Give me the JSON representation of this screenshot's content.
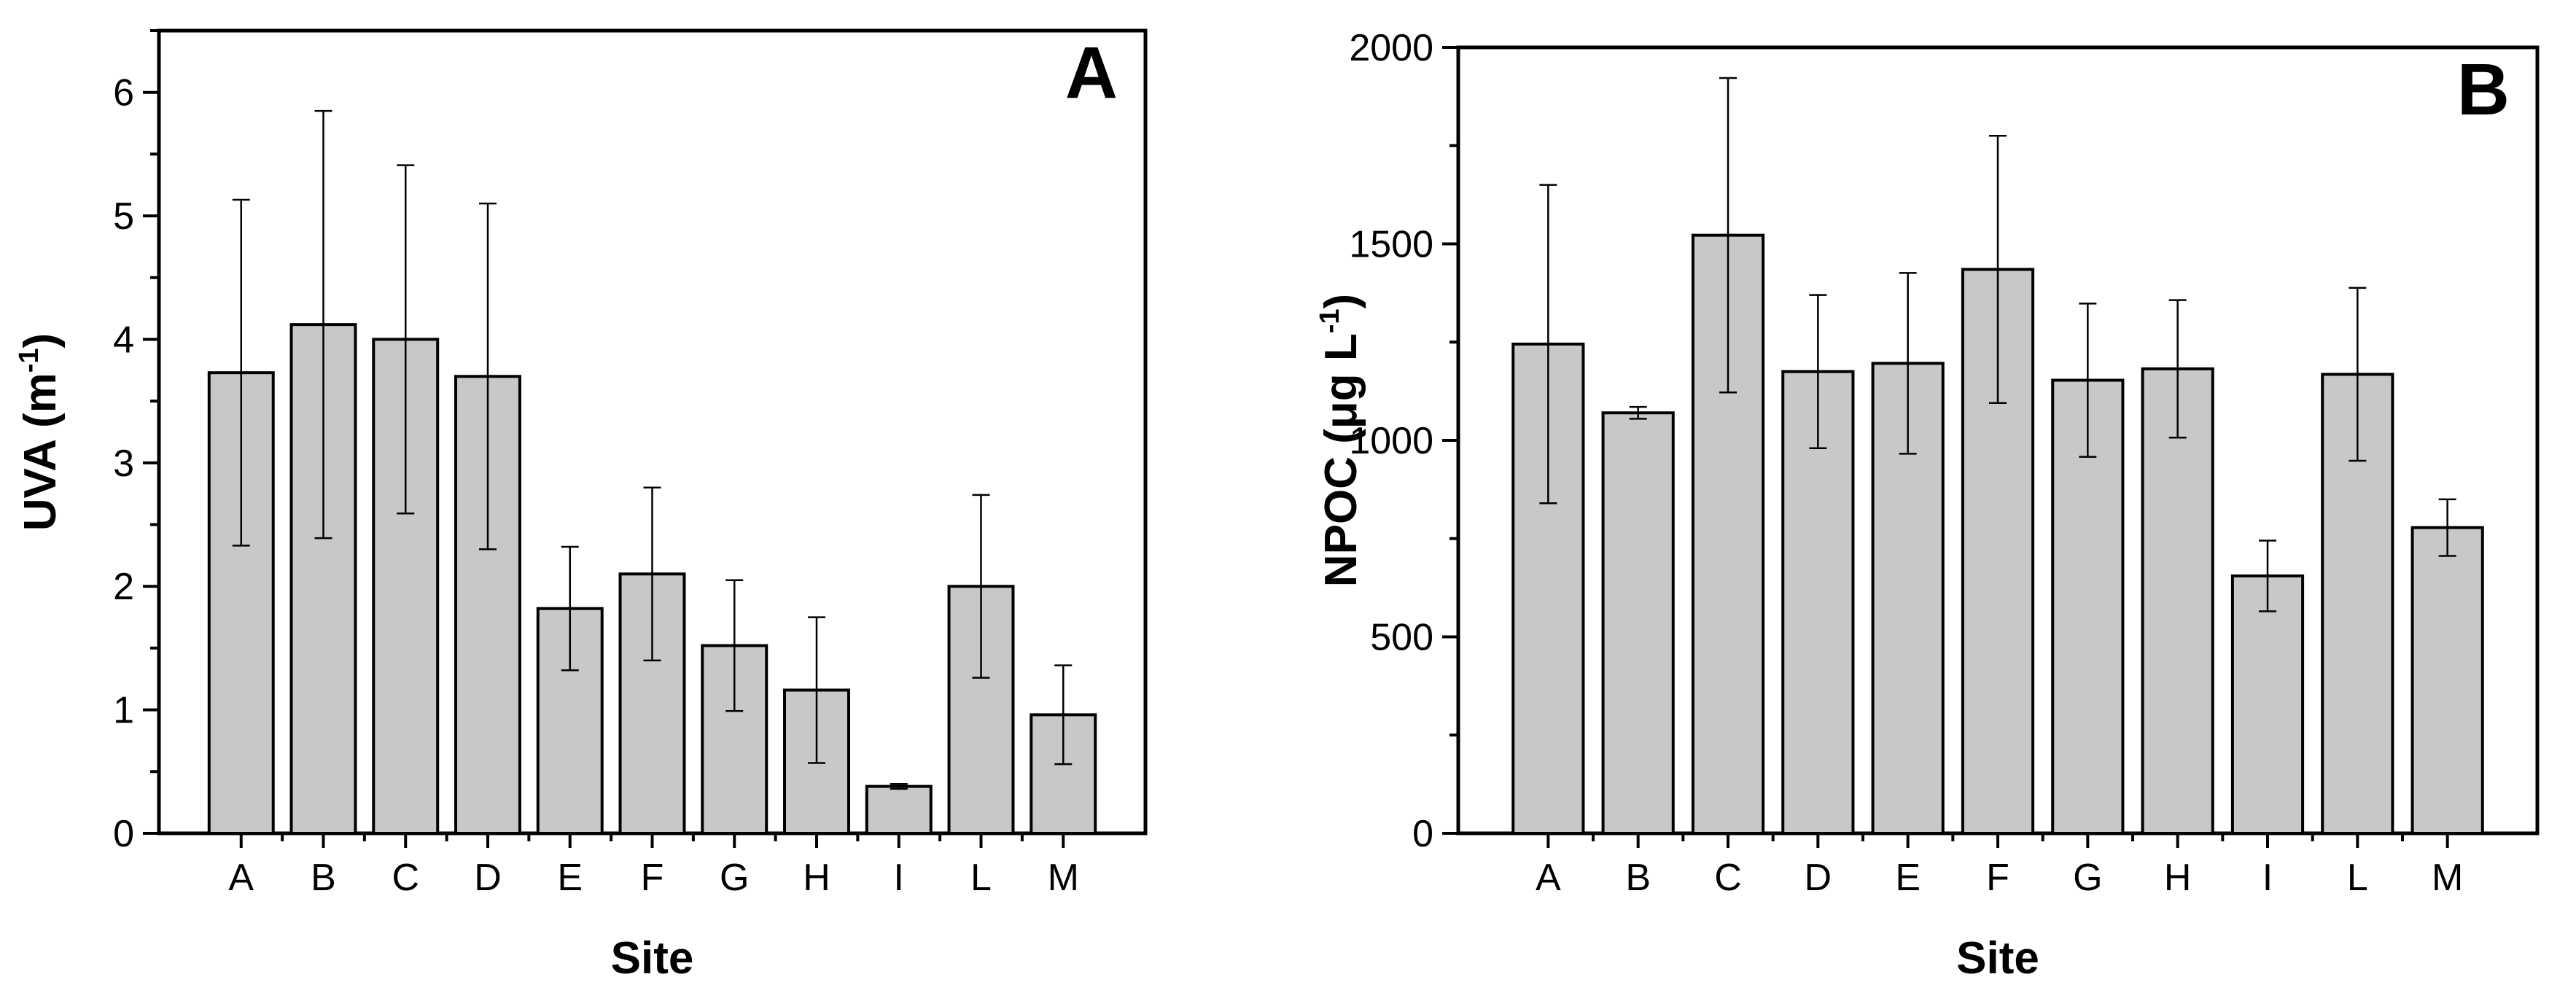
{
  "chart_data": [
    {
      "type": "bar",
      "panel_label": "A",
      "categories": [
        "A",
        "B",
        "C",
        "D",
        "E",
        "F",
        "G",
        "H",
        "I",
        "L",
        "M"
      ],
      "values": [
        3.73,
        4.12,
        4.0,
        3.7,
        1.82,
        2.1,
        1.52,
        1.16,
        0.38,
        2.0,
        0.96
      ],
      "errors": [
        1.4,
        1.73,
        1.41,
        1.4,
        0.5,
        0.7,
        0.53,
        0.59,
        0.02,
        0.74,
        0.4
      ],
      "xlabel": "Site",
      "ylabel_main": "UVA (m",
      "ylabel_sup": "-1",
      "ylabel_end": ")",
      "ylim": [
        0,
        6.5
      ],
      "yticks": [
        0,
        1,
        2,
        3,
        4,
        5,
        6
      ],
      "bar_color": "#c8c8c8"
    },
    {
      "type": "bar",
      "panel_label": "B",
      "categories": [
        "A",
        "B",
        "C",
        "D",
        "E",
        "F",
        "G",
        "H",
        "I",
        "L",
        "M"
      ],
      "values": [
        1245,
        1070,
        1522,
        1175,
        1196,
        1435,
        1153,
        1182,
        655,
        1168,
        778
      ],
      "errors": [
        405,
        15,
        400,
        195,
        230,
        340,
        195,
        175,
        90,
        220,
        72
      ],
      "xlabel": "Site",
      "ylabel_main": "NPOC (μg L",
      "ylabel_sup": "-1",
      "ylabel_end": ")",
      "ylim": [
        0,
        2000
      ],
      "yticks": [
        0,
        500,
        1000,
        1500,
        2000
      ],
      "bar_color": "#c8c8c8"
    }
  ]
}
